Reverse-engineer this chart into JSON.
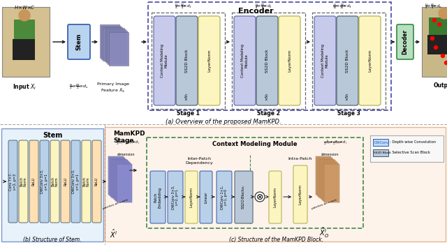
{
  "caption_a": "(a) Overview of the proposed MamKPD.",
  "caption_b": "(b) Structure of Stem.",
  "caption_c": "(c) Structure of the MamKPD Block.",
  "bg_color": "#ffffff",
  "context_color": "#c8caeb",
  "ss2d_color": "#b8c8d8",
  "layernorm_color": "#fdf5c0",
  "decoder_color": "#b8e0c0",
  "stem_color": "#b8d4ee",
  "mamkpd_bg": "#fde8d8",
  "stem_bg": "#d8eaf8",
  "encoder_dash": "#5555aa",
  "stage_dash": "#555555",
  "arrow_color": "#111111"
}
